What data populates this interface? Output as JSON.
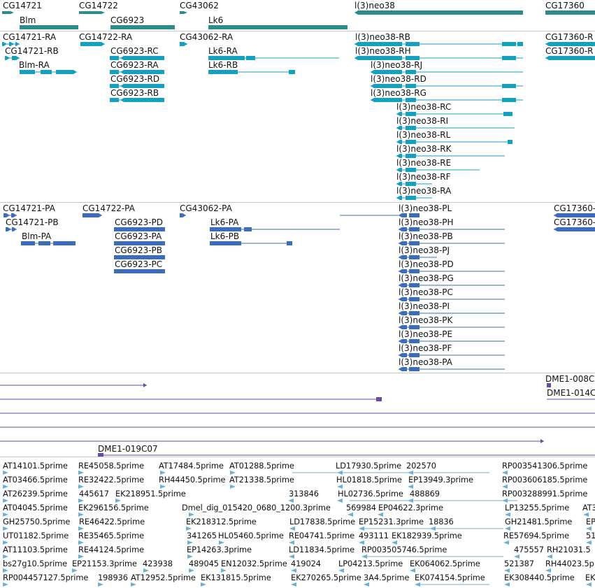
{
  "gene_track": {
    "genes": [
      {
        "label": "CG14721"
      },
      {
        "label": "Blm"
      },
      {
        "label": "CG14722"
      },
      {
        "label": "CG6923"
      },
      {
        "label": "CG43062"
      },
      {
        "label": "Lk6"
      },
      {
        "label": "l(3)neo38"
      },
      {
        "label": "CG17360"
      }
    ]
  },
  "rna_track": {
    "transcripts": [
      {
        "label": "CG14721-RA"
      },
      {
        "label": "CG14721-RB"
      },
      {
        "label": "Blm-RA"
      },
      {
        "label": "CG14722-RA"
      },
      {
        "label": "CG6923-RC"
      },
      {
        "label": "CG6923-RA"
      },
      {
        "label": "CG6923-RD"
      },
      {
        "label": "CG6923-RB"
      },
      {
        "label": "CG43062-RA"
      },
      {
        "label": "Lk6-RA"
      },
      {
        "label": "Lk6-RB"
      },
      {
        "label": "l(3)neo38-RB"
      },
      {
        "label": "l(3)neo38-RH"
      },
      {
        "label": "l(3)neo38-RJ"
      },
      {
        "label": "l(3)neo38-RD"
      },
      {
        "label": "l(3)neo38-RG"
      },
      {
        "label": "l(3)neo38-RC"
      },
      {
        "label": "l(3)neo38-RI"
      },
      {
        "label": "l(3)neo38-RL"
      },
      {
        "label": "l(3)neo38-RK"
      },
      {
        "label": "l(3)neo38-RE"
      },
      {
        "label": "l(3)neo38-RF"
      },
      {
        "label": "l(3)neo38-RA"
      },
      {
        "label": "CG17360-R"
      },
      {
        "label": "CG17360-R"
      }
    ]
  },
  "protein_track": {
    "items": [
      {
        "label": "CG14721-PA"
      },
      {
        "label": "CG14721-PB"
      },
      {
        "label": "Blm-PA"
      },
      {
        "label": "CG14722-PA"
      },
      {
        "label": "CG6923-PD"
      },
      {
        "label": "CG6923-PA"
      },
      {
        "label": "CG6923-PB"
      },
      {
        "label": "CG6923-PC"
      },
      {
        "label": "CG43062-PA"
      },
      {
        "label": "Lk6-PA"
      },
      {
        "label": "Lk6-PB"
      },
      {
        "label": "l(3)neo38-PL"
      },
      {
        "label": "l(3)neo38-PH"
      },
      {
        "label": "l(3)neo38-PB"
      },
      {
        "label": "l(3)neo38-PJ"
      },
      {
        "label": "l(3)neo38-PD"
      },
      {
        "label": "l(3)neo38-PG"
      },
      {
        "label": "l(3)neo38-PC"
      },
      {
        "label": "l(3)neo38-PI"
      },
      {
        "label": "l(3)neo38-PK"
      },
      {
        "label": "l(3)neo38-PE"
      },
      {
        "label": "l(3)neo38-PF"
      },
      {
        "label": "l(3)neo38-PA"
      },
      {
        "label": "CG17360-"
      },
      {
        "label": "CG17360-"
      }
    ]
  },
  "clone_track": {
    "items": [
      {
        "label": "DME1-008C"
      },
      {
        "label": "DME1-014C"
      },
      {
        "label": "DME1-019C07"
      }
    ]
  },
  "est_track": {
    "items": [
      "AT14101.5prime",
      "RE45058.5prime",
      "AT17484.5prime",
      "AT01288.5prime",
      "LD17930.5prime",
      "202570",
      "RP003541306.5prime",
      "AT03466.5prime",
      "RE32422.5prime",
      "RH44450.5prime",
      "AT21338.5prime",
      "HL01818.5prime",
      "EP13949.3prime",
      "RP003606185.5prime",
      "AT26239.5prime",
      "445617",
      "EK218951.5prime",
      "313846",
      "HL02736.5prime",
      "488869",
      "RP003288991.5prime",
      "AT04045.5prime",
      "EK296156.5prime",
      "Dmel_dig_015420_0680_1200.3prime",
      "569984",
      "EP04622.3prime",
      "LP13255.5prime",
      "AT3",
      "GH25750.5prime",
      "RE46422.5prime",
      "EK218312.5prime",
      "LD17838.5prime",
      "EP15231.3prime",
      "18836",
      "GH21481.5prime",
      "EP",
      "UT01182.5prime",
      "RE35465.5prime",
      "341265",
      "HL05460.5prime",
      "RE04741.5prime",
      "493111",
      "EK182939.5prime",
      "RE57694.5prime",
      "51",
      "AT11103.5prime",
      "RE44124.5prime",
      "EP14263.3prime",
      "LD11834.5prime",
      "RP003505746.5prime",
      "475557",
      "RH21031.5",
      "bs27g10.5prime",
      "EP21153.3prime",
      "423938",
      "489045",
      "EN12032.5prime",
      "419024",
      "LP04213.5prime",
      "EK064062.5prime",
      "521387",
      "RH44023.5p",
      "RP004457127.5prime",
      "198936",
      "AT12952.5prime",
      "EK131815.5prime",
      "EK270265.5prime",
      "3A4.5prime",
      "EK074154.5prime",
      "EK308440.5prime",
      "EK"
    ]
  },
  "colors": {
    "gene": "#2e8b8b",
    "rna": "#16a0c0",
    "protein": "#3a6cc0",
    "clone": "#6a4aa0",
    "est": "#6ab0d8"
  }
}
